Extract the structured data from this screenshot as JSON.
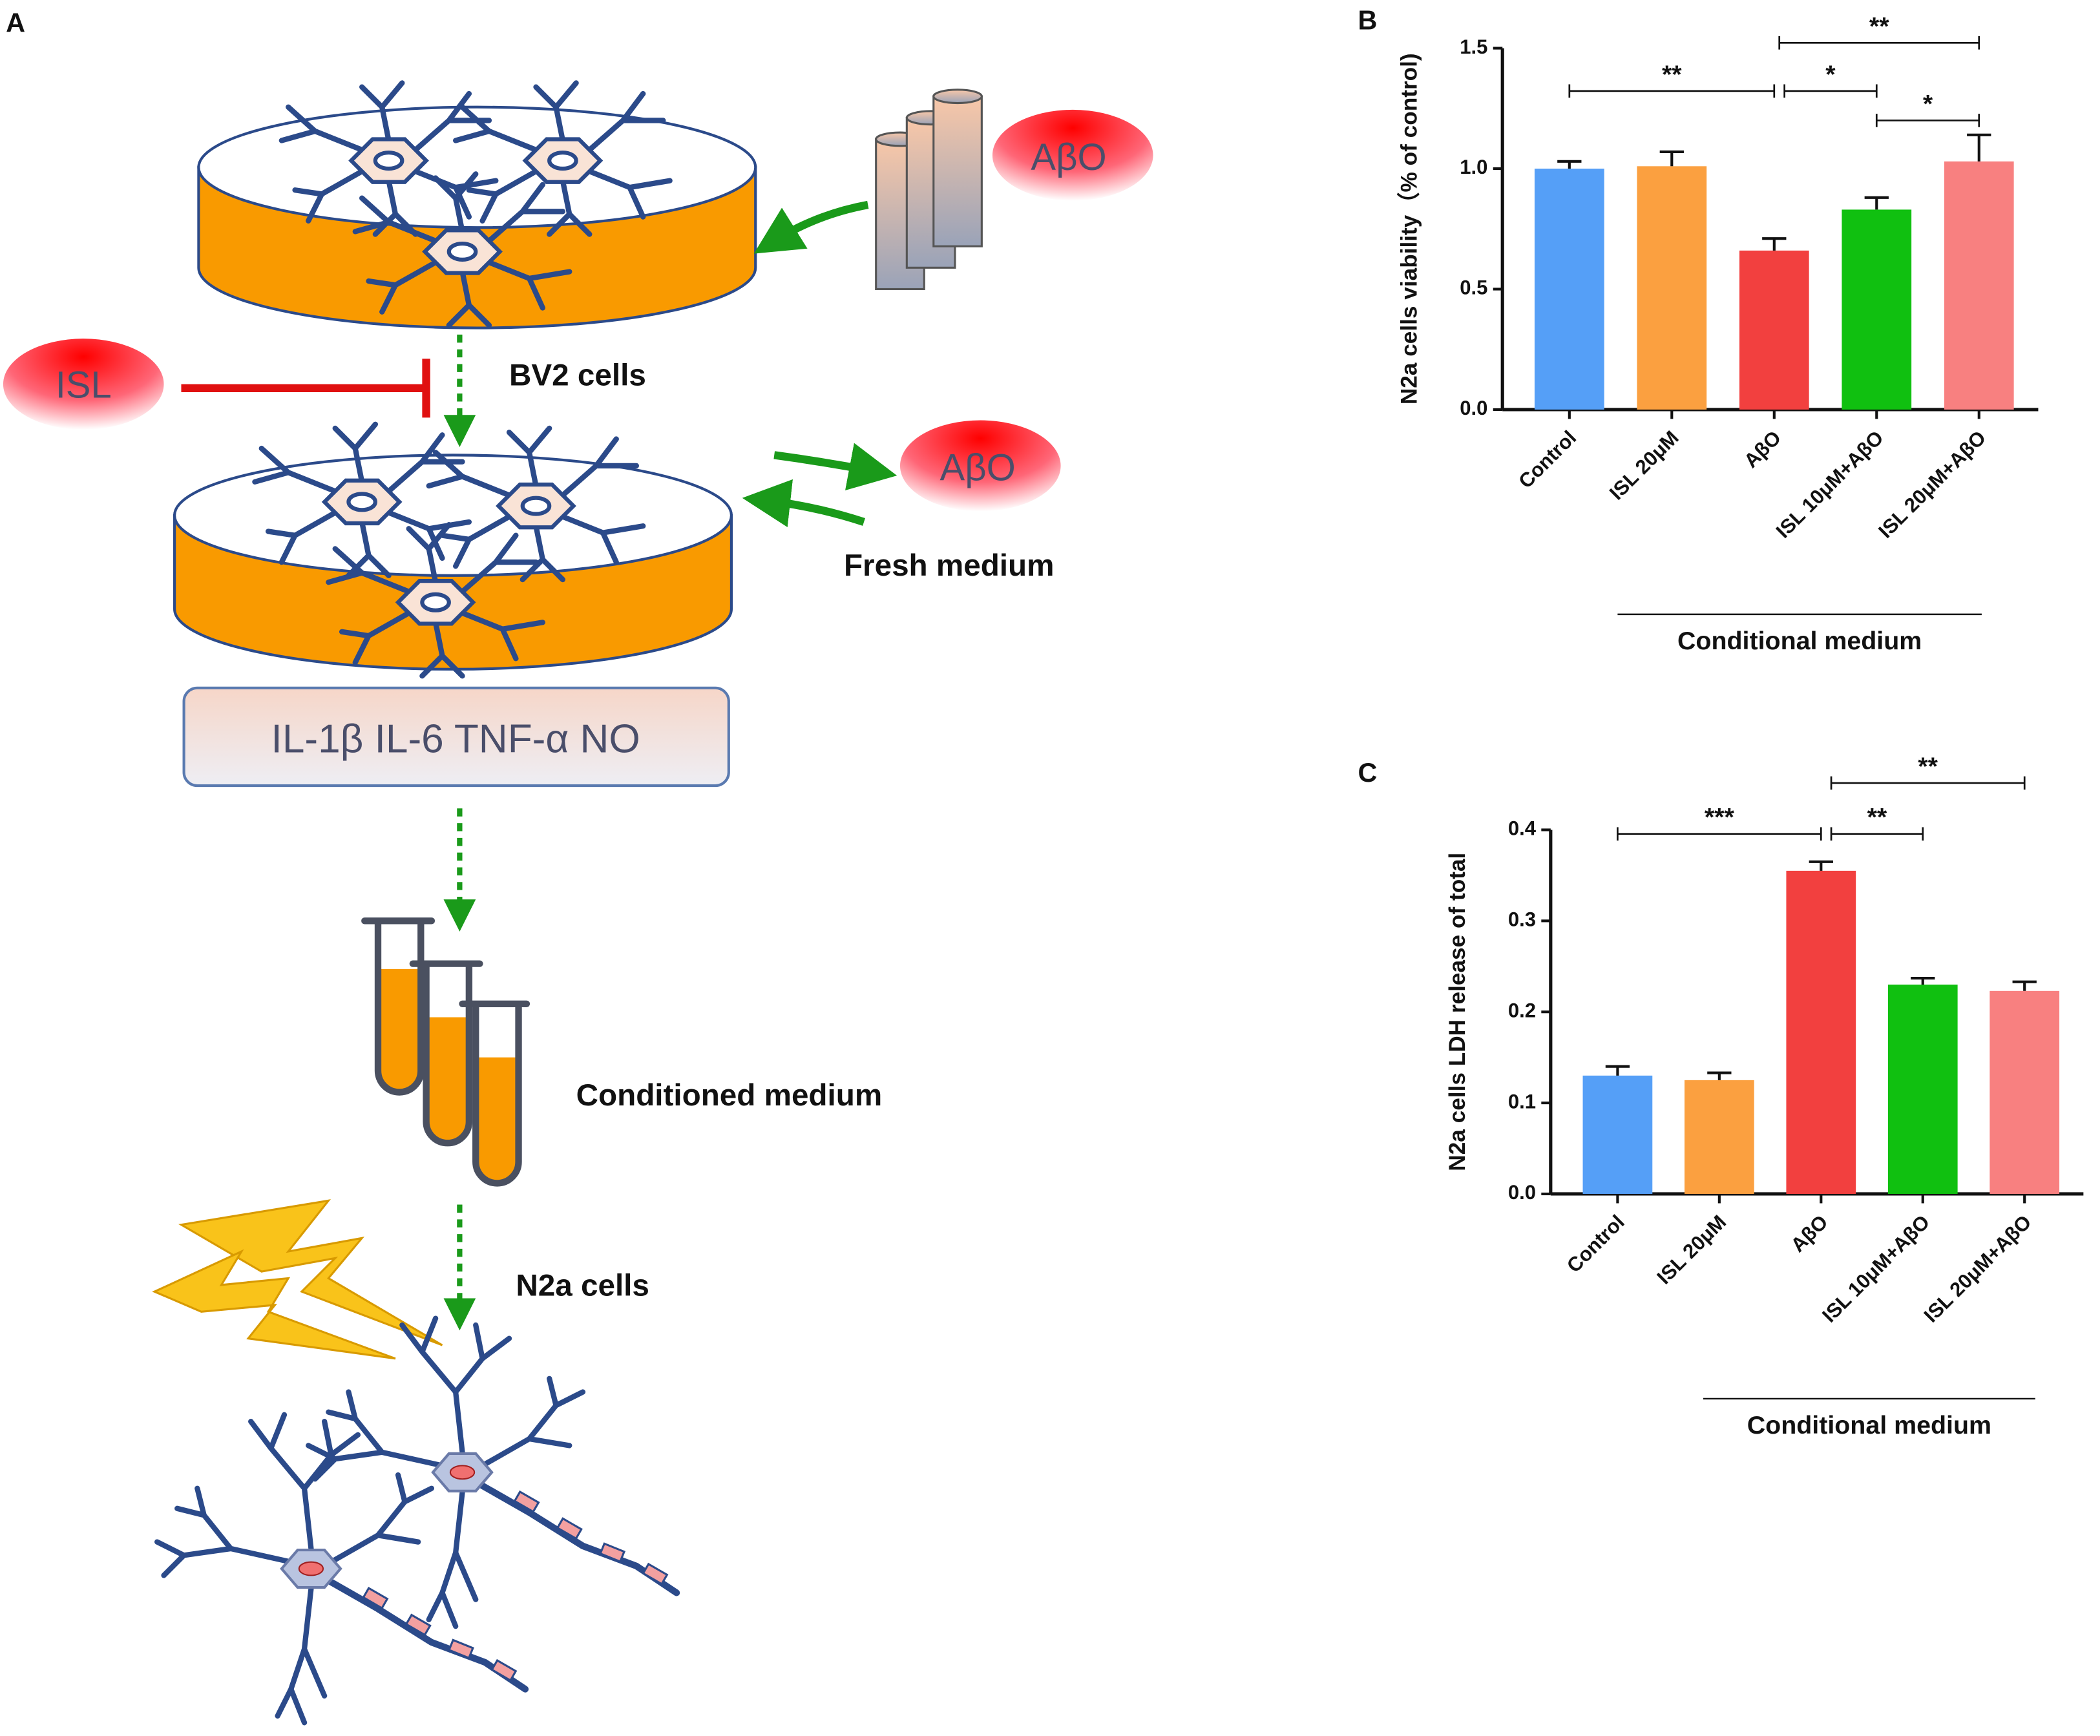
{
  "panel_labels": [
    "A",
    "B",
    "C"
  ],
  "diagram": {
    "abo_top": "AβO",
    "isl": "ISL",
    "bv2": "BV2 cells",
    "abo_right": "AβO",
    "fresh": "Fresh medium",
    "cytokines": "IL-1β IL-6 TNF-α NO",
    "conditioned": "Conditioned medium",
    "n2a": "N2a cells"
  },
  "chart_data": [
    {
      "type": "bar",
      "ylabel": "N2a cells viability（% of control)",
      "categories": [
        "Control",
        "ISL 20μM",
        "AβO",
        "ISL 10μM+AβO",
        "ISL 20μM+AβO"
      ],
      "values": [
        1.0,
        1.01,
        0.66,
        0.83,
        1.03
      ],
      "errors": [
        0.03,
        0.06,
        0.05,
        0.05,
        0.11
      ],
      "colors": [
        "#559ff7",
        "#fba040",
        "#f2403f",
        "#10c010",
        "#f88080"
      ],
      "ylim": [
        0,
        1.5
      ],
      "yticks": [
        {
          "value": 0,
          "label": "0.0"
        },
        0.5,
        {
          "value": 1,
          "label": "1.0"
        },
        1.5
      ],
      "group_label": "Conditional medium",
      "brackets": [
        "**",
        "*",
        "**",
        "*"
      ]
    },
    {
      "type": "bar",
      "ylabel": "N2a cells LDH release of total",
      "categories": [
        "Control",
        "ISL 20μM",
        "AβO",
        "ISL 10μM+AβO",
        "ISL 20μM+AβO"
      ],
      "values": [
        0.13,
        0.125,
        0.355,
        0.23,
        0.223
      ],
      "errors": [
        0.01,
        0.008,
        0.01,
        0.007,
        0.01
      ],
      "colors": [
        "#559ff7",
        "#fba040",
        "#f2403f",
        "#10c010",
        "#f88080"
      ],
      "ylim": [
        0,
        0.4
      ],
      "yticks": [
        {
          "value": 0,
          "label": "0.0"
        },
        0.1,
        0.2,
        0.3,
        0.4
      ],
      "group_label": "Conditional medium",
      "brackets": [
        "***",
        "**",
        "**"
      ]
    }
  ]
}
